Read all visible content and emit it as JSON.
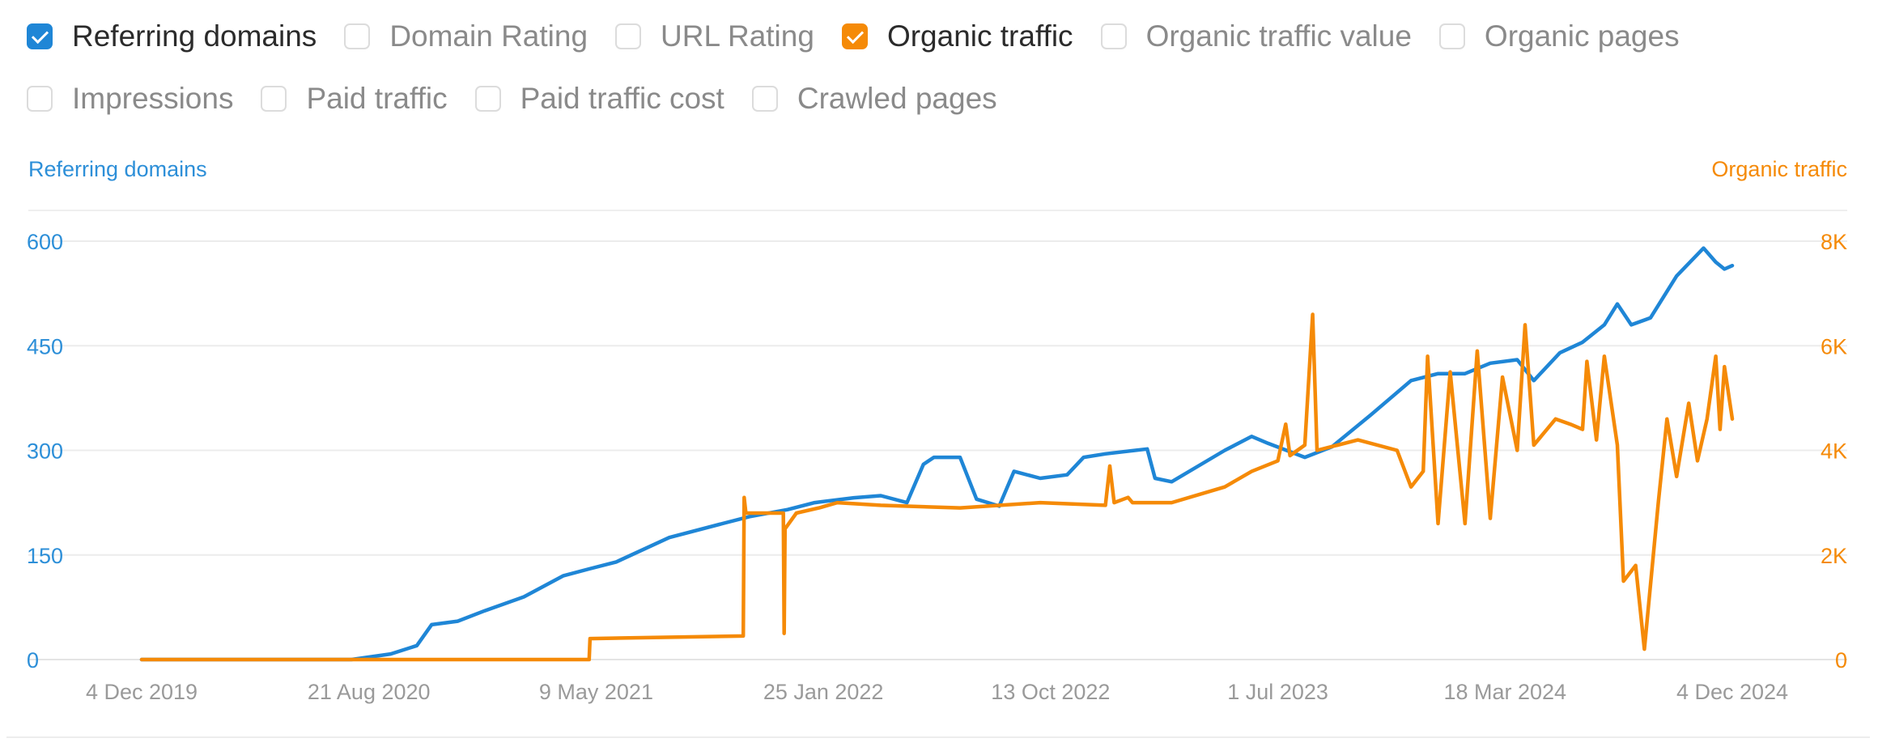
{
  "metrics": [
    {
      "label": "Referring domains",
      "checked": true,
      "color": "#1f86d6"
    },
    {
      "label": "Domain Rating",
      "checked": false
    },
    {
      "label": "URL Rating",
      "checked": false
    },
    {
      "label": "Organic traffic",
      "checked": true,
      "color": "#f58a07"
    },
    {
      "label": "Organic traffic value",
      "checked": false
    },
    {
      "label": "Organic pages",
      "checked": false
    },
    {
      "label": "Impressions",
      "checked": false
    },
    {
      "label": "Paid traffic",
      "checked": false
    },
    {
      "label": "Paid traffic cost",
      "checked": false
    },
    {
      "label": "Crawled pages",
      "checked": false
    }
  ],
  "chart_data": {
    "type": "line",
    "grid": true,
    "x_axis": {
      "type": "date",
      "tick_labels": [
        "4 Dec 2019",
        "21 Aug 2020",
        "9 May 2021",
        "25 Jan 2022",
        "13 Oct 2022",
        "1 Jul 2023",
        "18 Mar 2024",
        "4 Dec 2024"
      ],
      "range": [
        "2019-12-04",
        "2024-12-04"
      ]
    },
    "y_left": {
      "label": "Referring domains",
      "color": "#1f86d6",
      "ticks": [
        0,
        150,
        300,
        450,
        600
      ],
      "tick_labels": [
        "0",
        "150",
        "300",
        "450",
        "600"
      ],
      "range": [
        0,
        600
      ]
    },
    "y_right": {
      "label": "Organic traffic",
      "color": "#f58a07",
      "ticks": [
        0,
        2000,
        4000,
        6000,
        8000
      ],
      "tick_labels": [
        "0",
        "2K",
        "4K",
        "6K",
        "8K"
      ],
      "range": [
        0,
        8000
      ]
    },
    "series": [
      {
        "name": "Referring domains",
        "axis": "left",
        "color": "#1f86d6",
        "points": [
          [
            "2019-12-04",
            0
          ],
          [
            "2020-03-01",
            0
          ],
          [
            "2020-08-01",
            0
          ],
          [
            "2020-09-15",
            8
          ],
          [
            "2020-10-15",
            20
          ],
          [
            "2020-11-01",
            50
          ],
          [
            "2020-12-01",
            55
          ],
          [
            "2021-01-01",
            70
          ],
          [
            "2021-02-15",
            90
          ],
          [
            "2021-04-01",
            120
          ],
          [
            "2021-05-01",
            130
          ],
          [
            "2021-06-01",
            140
          ],
          [
            "2021-08-01",
            175
          ],
          [
            "2021-10-01",
            195
          ],
          [
            "2021-11-01",
            205
          ],
          [
            "2021-12-15",
            215
          ],
          [
            "2022-01-15",
            225
          ],
          [
            "2022-03-01",
            232
          ],
          [
            "2022-04-01",
            235
          ],
          [
            "2022-05-01",
            225
          ],
          [
            "2022-05-20",
            280
          ],
          [
            "2022-06-01",
            290
          ],
          [
            "2022-07-01",
            290
          ],
          [
            "2022-07-20",
            230
          ],
          [
            "2022-08-15",
            220
          ],
          [
            "2022-09-01",
            270
          ],
          [
            "2022-10-01",
            260
          ],
          [
            "2022-11-01",
            265
          ],
          [
            "2022-11-20",
            290
          ],
          [
            "2022-12-15",
            295
          ],
          [
            "2023-02-01",
            302
          ],
          [
            "2023-02-10",
            260
          ],
          [
            "2023-03-01",
            255
          ],
          [
            "2023-05-01",
            300
          ],
          [
            "2023-06-01",
            320
          ],
          [
            "2023-06-20",
            310
          ],
          [
            "2023-08-01",
            290
          ],
          [
            "2023-09-01",
            305
          ],
          [
            "2023-10-15",
            350
          ],
          [
            "2023-12-01",
            400
          ],
          [
            "2024-01-01",
            410
          ],
          [
            "2024-02-01",
            410
          ],
          [
            "2024-03-01",
            425
          ],
          [
            "2024-04-01",
            430
          ],
          [
            "2024-04-20",
            400
          ],
          [
            "2024-05-20",
            440
          ],
          [
            "2024-06-15",
            455
          ],
          [
            "2024-07-10",
            480
          ],
          [
            "2024-07-25",
            510
          ],
          [
            "2024-08-10",
            480
          ],
          [
            "2024-09-01",
            490
          ],
          [
            "2024-10-01",
            550
          ],
          [
            "2024-11-01",
            590
          ],
          [
            "2024-11-15",
            570
          ],
          [
            "2024-11-25",
            560
          ],
          [
            "2024-12-04",
            565
          ]
        ]
      },
      {
        "name": "Organic traffic",
        "axis": "right",
        "color": "#f58a07",
        "points": [
          [
            "2019-12-04",
            0
          ],
          [
            "2021-05-01",
            0
          ],
          [
            "2021-05-02",
            400
          ],
          [
            "2021-10-25",
            450
          ],
          [
            "2021-10-26",
            3100
          ],
          [
            "2021-10-28",
            2800
          ],
          [
            "2021-12-10",
            2800
          ],
          [
            "2021-12-11",
            500
          ],
          [
            "2021-12-12",
            2500
          ],
          [
            "2021-12-25",
            2800
          ],
          [
            "2022-01-20",
            2900
          ],
          [
            "2022-02-10",
            3000
          ],
          [
            "2022-04-01",
            2950
          ],
          [
            "2022-07-01",
            2900
          ],
          [
            "2022-10-01",
            3000
          ],
          [
            "2022-12-15",
            2950
          ],
          [
            "2022-12-20",
            3700
          ],
          [
            "2022-12-25",
            3000
          ],
          [
            "2023-01-10",
            3100
          ],
          [
            "2023-01-15",
            3000
          ],
          [
            "2023-03-01",
            3000
          ],
          [
            "2023-05-01",
            3300
          ],
          [
            "2023-06-01",
            3600
          ],
          [
            "2023-07-01",
            3800
          ],
          [
            "2023-07-10",
            4500
          ],
          [
            "2023-07-15",
            3900
          ],
          [
            "2023-08-01",
            4100
          ],
          [
            "2023-08-10",
            6600
          ],
          [
            "2023-08-15",
            4000
          ],
          [
            "2023-10-01",
            4200
          ],
          [
            "2023-11-15",
            4000
          ],
          [
            "2023-12-01",
            3300
          ],
          [
            "2023-12-15",
            3600
          ],
          [
            "2023-12-20",
            5800
          ],
          [
            "2024-01-01",
            2600
          ],
          [
            "2024-01-15",
            5500
          ],
          [
            "2024-02-01",
            2600
          ],
          [
            "2024-02-15",
            5900
          ],
          [
            "2024-03-01",
            2700
          ],
          [
            "2024-03-15",
            5400
          ],
          [
            "2024-04-01",
            4000
          ],
          [
            "2024-04-10",
            6400
          ],
          [
            "2024-04-20",
            4100
          ],
          [
            "2024-05-15",
            4600
          ],
          [
            "2024-06-01",
            4500
          ],
          [
            "2024-06-15",
            4400
          ],
          [
            "2024-06-20",
            5700
          ],
          [
            "2024-07-01",
            4200
          ],
          [
            "2024-07-10",
            5800
          ],
          [
            "2024-07-25",
            4100
          ],
          [
            "2024-08-01",
            1500
          ],
          [
            "2024-08-15",
            1800
          ],
          [
            "2024-08-25",
            200
          ],
          [
            "2024-09-10",
            3000
          ],
          [
            "2024-09-20",
            4600
          ],
          [
            "2024-10-01",
            3500
          ],
          [
            "2024-10-15",
            4900
          ],
          [
            "2024-10-25",
            3800
          ],
          [
            "2024-11-05",
            4600
          ],
          [
            "2024-11-15",
            5800
          ],
          [
            "2024-11-20",
            4400
          ],
          [
            "2024-11-25",
            5600
          ],
          [
            "2024-12-04",
            4600
          ]
        ]
      }
    ]
  }
}
